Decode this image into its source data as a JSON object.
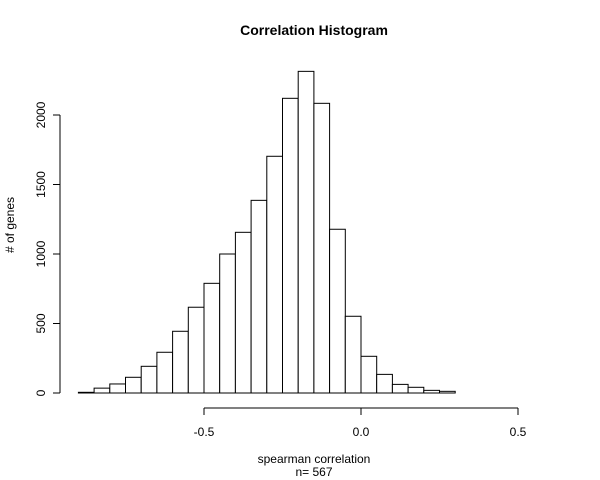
{
  "chart_data": {
    "type": "bar",
    "title": "Correlation Histogram",
    "xlabel": "spearman correlation",
    "xsublabel": "n= 567",
    "ylabel": "# of genes",
    "bin_start": -0.9,
    "bin_width": 0.05,
    "values": [
      5,
      35,
      65,
      113,
      192,
      293,
      444,
      617,
      789,
      1000,
      1156,
      1386,
      1703,
      2120,
      2314,
      2084,
      1178,
      552,
      264,
      134,
      62,
      41,
      19,
      12,
      0,
      0,
      0,
      0,
      0,
      0
    ],
    "xlim": [
      -0.9,
      0.6
    ],
    "ylim": [
      0,
      2314
    ],
    "xticks": [
      -0.5,
      0.0,
      0.5
    ],
    "xtick_labels": [
      "-0.5",
      "0.0",
      "0.5"
    ],
    "yticks": [
      0,
      500,
      1000,
      1500,
      2000
    ],
    "ytick_labels": [
      "0",
      "500",
      "1000",
      "1500",
      "2000"
    ],
    "grid": false
  }
}
